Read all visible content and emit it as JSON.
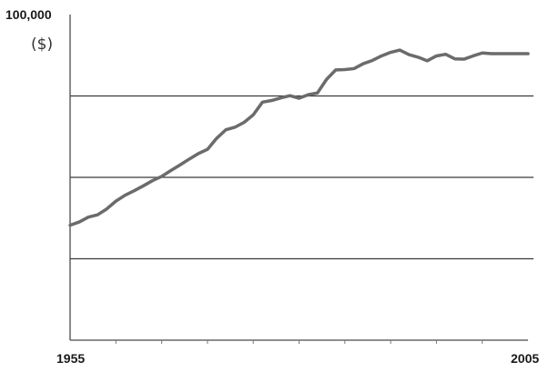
{
  "chart_data": {
    "type": "line",
    "title": "",
    "xlabel": "",
    "ylabel": "",
    "y_unit_label": "($)",
    "y_top_label": "100,000",
    "x_tick_labels": [
      "1955",
      "2005"
    ],
    "xlim": [
      1955,
      2005
    ],
    "ylim": [
      0,
      100000
    ],
    "y_gridlines": [
      25000,
      50000,
      75000
    ],
    "grid": "horizontal",
    "legend": "none",
    "x_minor_ticks": [
      1960,
      1965,
      1970,
      1975,
      1980,
      1985,
      1990,
      1995,
      2000
    ],
    "series": [
      {
        "color": "#6b6b6b",
        "x": [
          1955,
          1956,
          1957,
          1958,
          1959,
          1960,
          1961,
          1962,
          1963,
          1964,
          1965,
          1966,
          1967,
          1968,
          1969,
          1970,
          1971,
          1972,
          1973,
          1974,
          1975,
          1976,
          1977,
          1978,
          1979,
          1980,
          1981,
          1982,
          1983,
          1984,
          1985,
          1986,
          1987,
          1988,
          1989,
          1990,
          1991,
          1992,
          1993,
          1994,
          1995,
          1996,
          1997,
          1998,
          1999,
          2000,
          2001,
          2002,
          2003,
          2004,
          2005
        ],
        "values": [
          35300,
          36300,
          37800,
          38500,
          40300,
          42700,
          44500,
          45900,
          47400,
          49000,
          50300,
          52100,
          53800,
          55600,
          57300,
          58600,
          62000,
          64600,
          65400,
          66900,
          69200,
          73100,
          73600,
          74400,
          75100,
          74300,
          75400,
          75900,
          80100,
          83000,
          83100,
          83400,
          84900,
          85900,
          87300,
          88400,
          89100,
          87700,
          86900,
          85800,
          87300,
          87800,
          86400,
          86300,
          87300,
          88200,
          88000,
          88000,
          88000,
          88000,
          88000
        ]
      }
    ]
  }
}
